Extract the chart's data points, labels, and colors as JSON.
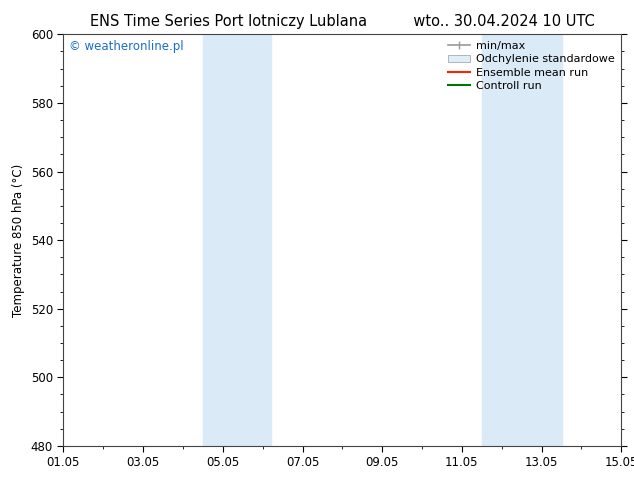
{
  "title_left": "ENS Time Series Port lotniczy Lublana",
  "title_right": "wto.. 30.04.2024 10 UTC",
  "ylabel": "Temperature 850 hPa (°C)",
  "xlim_dates": [
    "01.05",
    "03.05",
    "05.05",
    "07.05",
    "09.05",
    "11.05",
    "13.05",
    "15.05"
  ],
  "ylim": [
    480,
    600
  ],
  "yticks": [
    480,
    500,
    520,
    540,
    560,
    580,
    600
  ],
  "xticks": [
    0,
    2,
    4,
    6,
    8,
    10,
    12,
    14
  ],
  "x_total": 14,
  "background_color": "#ffffff",
  "plot_bg_color": "#ffffff",
  "shaded_regions": [
    {
      "x_start": 3.5,
      "x_end": 5.2,
      "color": "#dbeaf7"
    },
    {
      "x_start": 10.5,
      "x_end": 12.5,
      "color": "#dbeaf7"
    }
  ],
  "watermark_text": "© weatheronline.pl",
  "watermark_color": "#1a6ecc",
  "legend_minmax_color": "#999999",
  "legend_std_facecolor": "#ddeef8",
  "legend_std_edgecolor": "#aaaaaa",
  "legend_ensemble_color": "#ff2200",
  "legend_control_color": "#007700",
  "title_fontsize": 10.5,
  "tick_fontsize": 8.5,
  "legend_fontsize": 8,
  "ylabel_fontsize": 8.5,
  "watermark_fontsize": 8.5
}
